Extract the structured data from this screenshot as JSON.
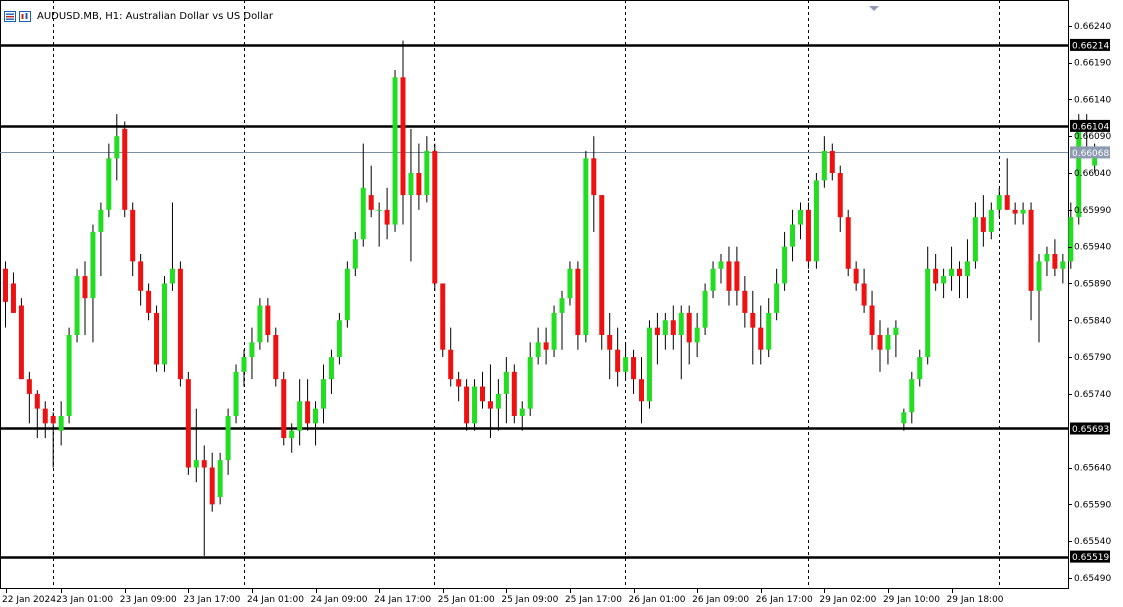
{
  "header": {
    "title": "AUDUSD.MB, H1:  Australian Dollar vs US Dollar"
  },
  "colors": {
    "bull": "#22dd22",
    "bear": "#ee1111",
    "wick": "#000000",
    "level_line": "#000000",
    "price_line": "#7a8ea5",
    "grid_v": "#000000",
    "bid_label_bg": "#8c9bb0",
    "level_label_bg": "#000000",
    "icon_blue": "#1a5fb4",
    "icon_red": "#cc2222"
  },
  "icons": [
    "menu-icon",
    "chart-window-icon"
  ],
  "chart_data": {
    "type": "candlestick",
    "title": "AUDUSD.MB, H1:  Australian Dollar vs US Dollar",
    "timeframe": "H1",
    "ylim": [
      0.65475,
      0.66275
    ],
    "y_ticks": [
      "0.66240",
      "0.66190",
      "0.66140",
      "0.66090",
      "0.66040",
      "0.65990",
      "0.65940",
      "0.65890",
      "0.65840",
      "0.65790",
      "0.65740",
      "0.65640",
      "0.65590",
      "0.65540",
      "0.65490"
    ],
    "x_ticks": [
      {
        "label": "22 Jan 2024",
        "index": 0
      },
      {
        "label": "23 Jan 01:00",
        "index": 7
      },
      {
        "label": "23 Jan 09:00",
        "index": 15
      },
      {
        "label": "23 Jan 17:00",
        "index": 23
      },
      {
        "label": "24 Jan 01:00",
        "index": 31
      },
      {
        "label": "24 Jan 09:00",
        "index": 39
      },
      {
        "label": "24 Jan 17:00",
        "index": 47
      },
      {
        "label": "25 Jan 01:00",
        "index": 55
      },
      {
        "label": "25 Jan 09:00",
        "index": 63
      },
      {
        "label": "25 Jan 17:00",
        "index": 71
      },
      {
        "label": "26 Jan 01:00",
        "index": 79
      },
      {
        "label": "26 Jan 09:00",
        "index": 87
      },
      {
        "label": "26 Jan 17:00",
        "index": 95
      },
      {
        "label": "29 Jan 02:00",
        "index": 103
      },
      {
        "label": "29 Jan 10:00",
        "index": 111
      },
      {
        "label": "29 Jan 18:00",
        "index": 119
      }
    ],
    "separator_indices": [
      6,
      30,
      54,
      78,
      101,
      125
    ],
    "horizontal_levels": [
      "0.66214",
      "0.66104",
      "0.65693",
      "0.65519"
    ],
    "current_price": "0.66068",
    "candles": [
      {
        "o": 0.6591,
        "h": 0.6592,
        "l": 0.6583,
        "c": 0.65865
      },
      {
        "o": 0.6589,
        "h": 0.65905,
        "l": 0.6585,
        "c": 0.6585
      },
      {
        "o": 0.6586,
        "h": 0.6587,
        "l": 0.6576,
        "c": 0.6576
      },
      {
        "o": 0.6576,
        "h": 0.6577,
        "l": 0.657,
        "c": 0.6574
      },
      {
        "o": 0.6574,
        "h": 0.65745,
        "l": 0.6568,
        "c": 0.6572
      },
      {
        "o": 0.6572,
        "h": 0.6573,
        "l": 0.6568,
        "c": 0.657
      },
      {
        "o": 0.6571,
        "h": 0.65715,
        "l": 0.6564,
        "c": 0.657
      },
      {
        "o": 0.6569,
        "h": 0.6573,
        "l": 0.6567,
        "c": 0.6571
      },
      {
        "o": 0.6571,
        "h": 0.6583,
        "l": 0.657,
        "c": 0.6582
      },
      {
        "o": 0.6582,
        "h": 0.6591,
        "l": 0.6581,
        "c": 0.659
      },
      {
        "o": 0.659,
        "h": 0.6592,
        "l": 0.6582,
        "c": 0.6587
      },
      {
        "o": 0.6587,
        "h": 0.6597,
        "l": 0.6581,
        "c": 0.6596
      },
      {
        "o": 0.6596,
        "h": 0.66,
        "l": 0.659,
        "c": 0.6599
      },
      {
        "o": 0.6599,
        "h": 0.6608,
        "l": 0.6598,
        "c": 0.6606
      },
      {
        "o": 0.6606,
        "h": 0.6612,
        "l": 0.6603,
        "c": 0.6609
      },
      {
        "o": 0.661,
        "h": 0.6611,
        "l": 0.6598,
        "c": 0.6599
      },
      {
        "o": 0.6599,
        "h": 0.66,
        "l": 0.659,
        "c": 0.6592
      },
      {
        "o": 0.6592,
        "h": 0.6593,
        "l": 0.6586,
        "c": 0.6588
      },
      {
        "o": 0.6588,
        "h": 0.6589,
        "l": 0.6584,
        "c": 0.6585
      },
      {
        "o": 0.6585,
        "h": 0.6586,
        "l": 0.6577,
        "c": 0.6578
      },
      {
        "o": 0.6578,
        "h": 0.659,
        "l": 0.6577,
        "c": 0.6589
      },
      {
        "o": 0.6589,
        "h": 0.66,
        "l": 0.6588,
        "c": 0.6591
      },
      {
        "o": 0.6591,
        "h": 0.6592,
        "l": 0.6575,
        "c": 0.6576
      },
      {
        "o": 0.6576,
        "h": 0.6577,
        "l": 0.6563,
        "c": 0.6564
      },
      {
        "o": 0.6564,
        "h": 0.6572,
        "l": 0.6562,
        "c": 0.6565
      },
      {
        "o": 0.6565,
        "h": 0.6567,
        "l": 0.6552,
        "c": 0.6564
      },
      {
        "o": 0.6564,
        "h": 0.6566,
        "l": 0.6558,
        "c": 0.6559
      },
      {
        "o": 0.656,
        "h": 0.6566,
        "l": 0.6559,
        "c": 0.6565
      },
      {
        "o": 0.6565,
        "h": 0.6572,
        "l": 0.6563,
        "c": 0.6571
      },
      {
        "o": 0.6571,
        "h": 0.6578,
        "l": 0.657,
        "c": 0.6577
      },
      {
        "o": 0.6577,
        "h": 0.658,
        "l": 0.6575,
        "c": 0.6579
      },
      {
        "o": 0.6579,
        "h": 0.6583,
        "l": 0.6576,
        "c": 0.6581
      },
      {
        "o": 0.6581,
        "h": 0.6587,
        "l": 0.658,
        "c": 0.6586
      },
      {
        "o": 0.6586,
        "h": 0.6587,
        "l": 0.6581,
        "c": 0.6582
      },
      {
        "o": 0.6582,
        "h": 0.6583,
        "l": 0.6575,
        "c": 0.6576
      },
      {
        "o": 0.6576,
        "h": 0.6577,
        "l": 0.6567,
        "c": 0.6568
      },
      {
        "o": 0.6568,
        "h": 0.657,
        "l": 0.6566,
        "c": 0.6569
      },
      {
        "o": 0.6569,
        "h": 0.6576,
        "l": 0.6567,
        "c": 0.6573
      },
      {
        "o": 0.6573,
        "h": 0.6576,
        "l": 0.6569,
        "c": 0.657
      },
      {
        "o": 0.657,
        "h": 0.6573,
        "l": 0.6567,
        "c": 0.6572
      },
      {
        "o": 0.6572,
        "h": 0.6578,
        "l": 0.657,
        "c": 0.6576
      },
      {
        "o": 0.6576,
        "h": 0.658,
        "l": 0.6574,
        "c": 0.6579
      },
      {
        "o": 0.6579,
        "h": 0.6585,
        "l": 0.6578,
        "c": 0.6584
      },
      {
        "o": 0.6584,
        "h": 0.6592,
        "l": 0.6583,
        "c": 0.6591
      },
      {
        "o": 0.6591,
        "h": 0.6596,
        "l": 0.659,
        "c": 0.6595
      },
      {
        "o": 0.6595,
        "h": 0.6608,
        "l": 0.6594,
        "c": 0.6602
      },
      {
        "o": 0.6601,
        "h": 0.6605,
        "l": 0.6598,
        "c": 0.6599
      },
      {
        "o": 0.6599,
        "h": 0.66,
        "l": 0.6594,
        "c": 0.6599
      },
      {
        "o": 0.6599,
        "h": 0.6602,
        "l": 0.6595,
        "c": 0.6597
      },
      {
        "o": 0.6597,
        "h": 0.6618,
        "l": 0.6596,
        "c": 0.6617
      },
      {
        "o": 0.6617,
        "h": 0.6622,
        "l": 0.6597,
        "c": 0.6601
      },
      {
        "o": 0.6601,
        "h": 0.661,
        "l": 0.6592,
        "c": 0.6604
      },
      {
        "o": 0.6604,
        "h": 0.6608,
        "l": 0.6599,
        "c": 0.6601
      },
      {
        "o": 0.6601,
        "h": 0.6609,
        "l": 0.66,
        "c": 0.6607
      },
      {
        "o": 0.6607,
        "h": 0.6608,
        "l": 0.6588,
        "c": 0.6589
      },
      {
        "o": 0.6589,
        "h": 0.6589,
        "l": 0.6579,
        "c": 0.658
      },
      {
        "o": 0.658,
        "h": 0.6583,
        "l": 0.6575,
        "c": 0.6576
      },
      {
        "o": 0.6576,
        "h": 0.6577,
        "l": 0.6573,
        "c": 0.6575
      },
      {
        "o": 0.6575,
        "h": 0.6576,
        "l": 0.6569,
        "c": 0.657
      },
      {
        "o": 0.657,
        "h": 0.6576,
        "l": 0.6569,
        "c": 0.6575
      },
      {
        "o": 0.6575,
        "h": 0.6577,
        "l": 0.6572,
        "c": 0.6573
      },
      {
        "o": 0.6573,
        "h": 0.6578,
        "l": 0.6568,
        "c": 0.6572
      },
      {
        "o": 0.6572,
        "h": 0.6576,
        "l": 0.6569,
        "c": 0.6574
      },
      {
        "o": 0.6574,
        "h": 0.6579,
        "l": 0.657,
        "c": 0.6577
      },
      {
        "o": 0.6577,
        "h": 0.6578,
        "l": 0.657,
        "c": 0.6571
      },
      {
        "o": 0.6571,
        "h": 0.6573,
        "l": 0.6569,
        "c": 0.6572
      },
      {
        "o": 0.6572,
        "h": 0.6581,
        "l": 0.6571,
        "c": 0.6579
      },
      {
        "o": 0.6579,
        "h": 0.6583,
        "l": 0.6578,
        "c": 0.6581
      },
      {
        "o": 0.6581,
        "h": 0.6583,
        "l": 0.6578,
        "c": 0.658
      },
      {
        "o": 0.658,
        "h": 0.6586,
        "l": 0.6579,
        "c": 0.6585
      },
      {
        "o": 0.6585,
        "h": 0.6588,
        "l": 0.658,
        "c": 0.6587
      },
      {
        "o": 0.6587,
        "h": 0.6592,
        "l": 0.6586,
        "c": 0.6591
      },
      {
        "o": 0.6591,
        "h": 0.6592,
        "l": 0.658,
        "c": 0.6582
      },
      {
        "o": 0.6582,
        "h": 0.6607,
        "l": 0.6581,
        "c": 0.6606
      },
      {
        "o": 0.6606,
        "h": 0.6609,
        "l": 0.6596,
        "c": 0.6601
      },
      {
        "o": 0.6601,
        "h": 0.6601,
        "l": 0.658,
        "c": 0.6582
      },
      {
        "o": 0.6582,
        "h": 0.6585,
        "l": 0.6576,
        "c": 0.658
      },
      {
        "o": 0.658,
        "h": 0.6583,
        "l": 0.6575,
        "c": 0.6577
      },
      {
        "o": 0.6577,
        "h": 0.6581,
        "l": 0.6576,
        "c": 0.6579
      },
      {
        "o": 0.6579,
        "h": 0.658,
        "l": 0.6574,
        "c": 0.6576
      },
      {
        "o": 0.6576,
        "h": 0.6579,
        "l": 0.657,
        "c": 0.6573
      },
      {
        "o": 0.6573,
        "h": 0.6584,
        "l": 0.6572,
        "c": 0.6583
      },
      {
        "o": 0.6583,
        "h": 0.6585,
        "l": 0.6578,
        "c": 0.6582
      },
      {
        "o": 0.6582,
        "h": 0.6585,
        "l": 0.658,
        "c": 0.6584
      },
      {
        "o": 0.6584,
        "h": 0.6586,
        "l": 0.658,
        "c": 0.6582
      },
      {
        "o": 0.6582,
        "h": 0.6586,
        "l": 0.6576,
        "c": 0.6585
      },
      {
        "o": 0.6585,
        "h": 0.6586,
        "l": 0.6578,
        "c": 0.6581
      },
      {
        "o": 0.6581,
        "h": 0.6585,
        "l": 0.6579,
        "c": 0.6583
      },
      {
        "o": 0.6583,
        "h": 0.6589,
        "l": 0.6582,
        "c": 0.6588
      },
      {
        "o": 0.6588,
        "h": 0.6592,
        "l": 0.6587,
        "c": 0.6591
      },
      {
        "o": 0.6591,
        "h": 0.6593,
        "l": 0.6589,
        "c": 0.6592
      },
      {
        "o": 0.6592,
        "h": 0.6594,
        "l": 0.6586,
        "c": 0.6588
      },
      {
        "o": 0.6592,
        "h": 0.6594,
        "l": 0.6586,
        "c": 0.6588
      },
      {
        "o": 0.6588,
        "h": 0.659,
        "l": 0.6583,
        "c": 0.6585
      },
      {
        "o": 0.6585,
        "h": 0.6588,
        "l": 0.6578,
        "c": 0.6583
      },
      {
        "o": 0.6583,
        "h": 0.6586,
        "l": 0.6578,
        "c": 0.658
      },
      {
        "o": 0.658,
        "h": 0.6587,
        "l": 0.6579,
        "c": 0.6585
      },
      {
        "o": 0.6585,
        "h": 0.6591,
        "l": 0.6584,
        "c": 0.6589
      },
      {
        "o": 0.6589,
        "h": 0.6596,
        "l": 0.6588,
        "c": 0.6594
      },
      {
        "o": 0.6594,
        "h": 0.6599,
        "l": 0.6592,
        "c": 0.6597
      },
      {
        "o": 0.6597,
        "h": 0.66,
        "l": 0.6595,
        "c": 0.6599
      },
      {
        "o": 0.6599,
        "h": 0.66,
        "l": 0.6591,
        "c": 0.6592
      },
      {
        "o": 0.6592,
        "h": 0.6604,
        "l": 0.6591,
        "c": 0.6603
      },
      {
        "o": 0.6603,
        "h": 0.6609,
        "l": 0.6602,
        "c": 0.6607
      },
      {
        "o": 0.6607,
        "h": 0.6608,
        "l": 0.6603,
        "c": 0.6604
      },
      {
        "o": 0.6604,
        "h": 0.6605,
        "l": 0.6596,
        "c": 0.6598
      },
      {
        "o": 0.6598,
        "h": 0.6599,
        "l": 0.659,
        "c": 0.6591
      },
      {
        "o": 0.6591,
        "h": 0.6592,
        "l": 0.6588,
        "c": 0.6589
      },
      {
        "o": 0.6589,
        "h": 0.6591,
        "l": 0.6585,
        "c": 0.6586
      },
      {
        "o": 0.6586,
        "h": 0.6588,
        "l": 0.658,
        "c": 0.6582
      },
      {
        "o": 0.6582,
        "h": 0.6584,
        "l": 0.6577,
        "c": 0.658
      },
      {
        "o": 0.658,
        "h": 0.6583,
        "l": 0.6578,
        "c": 0.6582
      },
      {
        "o": 0.6582,
        "h": 0.6584,
        "l": 0.6579,
        "c": 0.6583
      },
      {
        "o": 0.657,
        "h": 0.6572,
        "l": 0.6569,
        "c": 0.65715
      },
      {
        "o": 0.65715,
        "h": 0.6577,
        "l": 0.657,
        "c": 0.6576
      },
      {
        "o": 0.6576,
        "h": 0.658,
        "l": 0.6575,
        "c": 0.6579
      },
      {
        "o": 0.6579,
        "h": 0.6594,
        "l": 0.6578,
        "c": 0.6591
      },
      {
        "o": 0.6591,
        "h": 0.6593,
        "l": 0.6588,
        "c": 0.6589
      },
      {
        "o": 0.6589,
        "h": 0.6591,
        "l": 0.6587,
        "c": 0.659
      },
      {
        "o": 0.659,
        "h": 0.6594,
        "l": 0.6588,
        "c": 0.6591
      },
      {
        "o": 0.6591,
        "h": 0.6592,
        "l": 0.6587,
        "c": 0.659
      },
      {
        "o": 0.659,
        "h": 0.6595,
        "l": 0.6587,
        "c": 0.6592
      },
      {
        "o": 0.6592,
        "h": 0.66,
        "l": 0.6591,
        "c": 0.6598
      },
      {
        "o": 0.6598,
        "h": 0.6601,
        "l": 0.6594,
        "c": 0.6596
      },
      {
        "o": 0.6596,
        "h": 0.66,
        "l": 0.6595,
        "c": 0.6599
      },
      {
        "o": 0.6599,
        "h": 0.6602,
        "l": 0.6598,
        "c": 0.6601
      },
      {
        "o": 0.6601,
        "h": 0.6606,
        "l": 0.6599,
        "c": 0.6599
      },
      {
        "o": 0.6599,
        "h": 0.66,
        "l": 0.6597,
        "c": 0.65985
      },
      {
        "o": 0.65985,
        "h": 0.66,
        "l": 0.6597,
        "c": 0.6599
      },
      {
        "o": 0.6599,
        "h": 0.66,
        "l": 0.6584,
        "c": 0.6588
      },
      {
        "o": 0.6588,
        "h": 0.6593,
        "l": 0.6581,
        "c": 0.6592
      },
      {
        "o": 0.6592,
        "h": 0.6594,
        "l": 0.659,
        "c": 0.6593
      },
      {
        "o": 0.6593,
        "h": 0.6595,
        "l": 0.659,
        "c": 0.6591
      },
      {
        "o": 0.6591,
        "h": 0.6593,
        "l": 0.6589,
        "c": 0.6592
      },
      {
        "o": 0.6592,
        "h": 0.66,
        "l": 0.6591,
        "c": 0.6598
      },
      {
        "o": 0.6598,
        "h": 0.6612,
        "l": 0.6597,
        "c": 0.6611
      },
      {
        "o": 0.6611,
        "h": 0.6612,
        "l": 0.6607,
        "c": 0.661
      },
      {
        "o": 0.6605,
        "h": 0.6608,
        "l": 0.6604,
        "c": 0.66068
      }
    ]
  }
}
